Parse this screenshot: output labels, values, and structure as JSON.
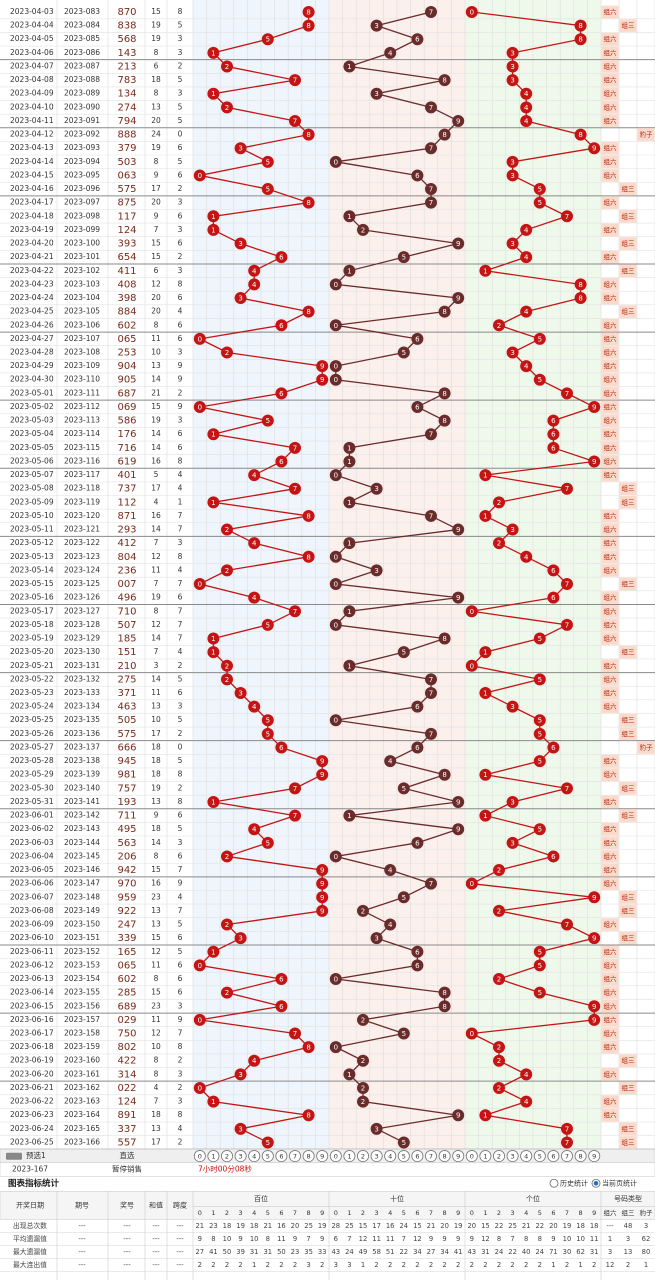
{
  "rows": [
    [
      "2023-04-03",
      "2023-083",
      "870",
      15,
      8,
      [
        8,
        7,
        0
      ],
      "组六"
    ],
    [
      "2023-04-04",
      "2023-084",
      "838",
      19,
      5,
      [
        8,
        3,
        8
      ],
      "组三"
    ],
    [
      "2023-04-05",
      "2023-085",
      "568",
      19,
      3,
      [
        5,
        6,
        8
      ],
      "组六"
    ],
    [
      "2023-04-06",
      "2023-086",
      "143",
      8,
      3,
      [
        1,
        4,
        3
      ],
      "组六"
    ],
    [
      "2023-04-07",
      "2023-087",
      "213",
      6,
      2,
      [
        2,
        1,
        3
      ],
      "组六"
    ],
    [
      "2023-04-08",
      "2023-088",
      "783",
      18,
      5,
      [
        7,
        8,
        3
      ],
      "组六"
    ],
    [
      "2023-04-09",
      "2023-089",
      "134",
      8,
      3,
      [
        1,
        3,
        4
      ],
      "组六"
    ],
    [
      "2023-04-10",
      "2023-090",
      "274",
      13,
      5,
      [
        2,
        7,
        4
      ],
      "组六"
    ],
    [
      "2023-04-11",
      "2023-091",
      "794",
      20,
      5,
      [
        7,
        9,
        4
      ],
      "组六"
    ],
    [
      "2023-04-12",
      "2023-092",
      "888",
      24,
      0,
      [
        8,
        8,
        8
      ],
      "豹子"
    ],
    [
      "2023-04-13",
      "2023-093",
      "379",
      19,
      6,
      [
        3,
        7,
        9
      ],
      "组六"
    ],
    [
      "2023-04-14",
      "2023-094",
      "503",
      8,
      5,
      [
        5,
        0,
        3
      ],
      "组六"
    ],
    [
      "2023-04-15",
      "2023-095",
      "063",
      9,
      6,
      [
        0,
        6,
        3
      ],
      "组六"
    ],
    [
      "2023-04-16",
      "2023-096",
      "575",
      17,
      2,
      [
        5,
        7,
        5
      ],
      "组三"
    ],
    [
      "2023-04-17",
      "2023-097",
      "875",
      20,
      3,
      [
        8,
        7,
        5
      ],
      "组六"
    ],
    [
      "2023-04-18",
      "2023-098",
      "117",
      9,
      6,
      [
        1,
        1,
        7
      ],
      "组三"
    ],
    [
      "2023-04-19",
      "2023-099",
      "124",
      7,
      3,
      [
        1,
        2,
        4
      ],
      "组六"
    ],
    [
      "2023-04-20",
      "2023-100",
      "393",
      15,
      6,
      [
        3,
        9,
        3
      ],
      "组三"
    ],
    [
      "2023-04-21",
      "2023-101",
      "654",
      15,
      2,
      [
        6,
        5,
        4
      ],
      "组六"
    ],
    [
      "2023-04-22",
      "2023-102",
      "411",
      6,
      3,
      [
        4,
        1,
        1
      ],
      "组三"
    ],
    [
      "2023-04-23",
      "2023-103",
      "408",
      12,
      8,
      [
        4,
        0,
        8
      ],
      "组六"
    ],
    [
      "2023-04-24",
      "2023-104",
      "398",
      20,
      6,
      [
        3,
        9,
        8
      ],
      "组六"
    ],
    [
      "2023-04-25",
      "2023-105",
      "884",
      20,
      4,
      [
        8,
        8,
        4
      ],
      "组三"
    ],
    [
      "2023-04-26",
      "2023-106",
      "602",
      8,
      6,
      [
        6,
        0,
        2
      ],
      "组六"
    ],
    [
      "2023-04-27",
      "2023-107",
      "065",
      11,
      6,
      [
        0,
        6,
        5
      ],
      "组六"
    ],
    [
      "2023-04-28",
      "2023-108",
      "253",
      10,
      3,
      [
        2,
        5,
        3
      ],
      "组六"
    ],
    [
      "2023-04-29",
      "2023-109",
      "904",
      13,
      9,
      [
        9,
        0,
        4
      ],
      "组六"
    ],
    [
      "2023-04-30",
      "2023-110",
      "905",
      14,
      9,
      [
        9,
        0,
        5
      ],
      "组六"
    ],
    [
      "2023-05-01",
      "2023-111",
      "687",
      21,
      2,
      [
        6,
        8,
        7
      ],
      "组六"
    ],
    [
      "2023-05-02",
      "2023-112",
      "069",
      15,
      9,
      [
        0,
        6,
        9
      ],
      "组六"
    ],
    [
      "2023-05-03",
      "2023-113",
      "586",
      19,
      3,
      [
        5,
        8,
        6
      ],
      "组六"
    ],
    [
      "2023-05-04",
      "2023-114",
      "176",
      14,
      6,
      [
        1,
        7,
        6
      ],
      "组六"
    ],
    [
      "2023-05-05",
      "2023-115",
      "716",
      14,
      6,
      [
        7,
        1,
        6
      ],
      "组六"
    ],
    [
      "2023-05-06",
      "2023-116",
      "619",
      16,
      8,
      [
        6,
        1,
        9
      ],
      "组六"
    ],
    [
      "2023-05-07",
      "2023-117",
      "401",
      5,
      4,
      [
        4,
        0,
        1
      ],
      "组六"
    ],
    [
      "2023-05-08",
      "2023-118",
      "737",
      17,
      4,
      [
        7,
        3,
        7
      ],
      "组三"
    ],
    [
      "2023-05-09",
      "2023-119",
      "112",
      4,
      1,
      [
        1,
        1,
        2
      ],
      "组三"
    ],
    [
      "2023-05-10",
      "2023-120",
      "871",
      16,
      7,
      [
        8,
        7,
        1
      ],
      "组六"
    ],
    [
      "2023-05-11",
      "2023-121",
      "293",
      14,
      7,
      [
        2,
        9,
        3
      ],
      "组六"
    ],
    [
      "2023-05-12",
      "2023-122",
      "412",
      7,
      3,
      [
        4,
        1,
        2
      ],
      "组六"
    ],
    [
      "2023-05-13",
      "2023-123",
      "804",
      12,
      8,
      [
        8,
        0,
        4
      ],
      "组六"
    ],
    [
      "2023-05-14",
      "2023-124",
      "236",
      11,
      4,
      [
        2,
        3,
        6
      ],
      "组六"
    ],
    [
      "2023-05-15",
      "2023-125",
      "007",
      7,
      7,
      [
        0,
        0,
        7
      ],
      "组三"
    ],
    [
      "2023-05-16",
      "2023-126",
      "496",
      19,
      6,
      [
        4,
        9,
        6
      ],
      "组六"
    ],
    [
      "2023-05-17",
      "2023-127",
      "710",
      8,
      7,
      [
        7,
        1,
        0
      ],
      "组六"
    ],
    [
      "2023-05-18",
      "2023-128",
      "507",
      12,
      7,
      [
        5,
        0,
        7
      ],
      "组六"
    ],
    [
      "2023-05-19",
      "2023-129",
      "185",
      14,
      7,
      [
        1,
        8,
        5
      ],
      "组六"
    ],
    [
      "2023-05-20",
      "2023-130",
      "151",
      7,
      4,
      [
        1,
        5,
        1
      ],
      "组三"
    ],
    [
      "2023-05-21",
      "2023-131",
      "210",
      3,
      2,
      [
        2,
        1,
        0
      ],
      "组六"
    ],
    [
      "2023-05-22",
      "2023-132",
      "275",
      14,
      5,
      [
        2,
        7,
        5
      ],
      "组六"
    ],
    [
      "2023-05-23",
      "2023-133",
      "371",
      11,
      6,
      [
        3,
        7,
        1
      ],
      "组六"
    ],
    [
      "2023-05-24",
      "2023-134",
      "463",
      13,
      3,
      [
        4,
        6,
        3
      ],
      "组六"
    ],
    [
      "2023-05-25",
      "2023-135",
      "505",
      10,
      5,
      [
        5,
        0,
        5
      ],
      "组三"
    ],
    [
      "2023-05-26",
      "2023-136",
      "575",
      17,
      2,
      [
        5,
        7,
        5
      ],
      "组三"
    ],
    [
      "2023-05-27",
      "2023-137",
      "666",
      18,
      0,
      [
        6,
        6,
        6
      ],
      "豹子"
    ],
    [
      "2023-05-28",
      "2023-138",
      "945",
      18,
      5,
      [
        9,
        4,
        5
      ],
      "组六"
    ],
    [
      "2023-05-29",
      "2023-139",
      "981",
      18,
      8,
      [
        9,
        8,
        1
      ],
      "组六"
    ],
    [
      "2023-05-30",
      "2023-140",
      "757",
      19,
      2,
      [
        7,
        5,
        7
      ],
      "组三"
    ],
    [
      "2023-05-31",
      "2023-141",
      "193",
      13,
      8,
      [
        1,
        9,
        3
      ],
      "组六"
    ],
    [
      "2023-06-01",
      "2023-142",
      "711",
      9,
      6,
      [
        7,
        1,
        1
      ],
      "组三"
    ],
    [
      "2023-06-02",
      "2023-143",
      "495",
      18,
      5,
      [
        4,
        9,
        5
      ],
      "组六"
    ],
    [
      "2023-06-03",
      "2023-144",
      "563",
      14,
      3,
      [
        5,
        6,
        3
      ],
      "组六"
    ],
    [
      "2023-06-04",
      "2023-145",
      "206",
      8,
      6,
      [
        2,
        0,
        6
      ],
      "组六"
    ],
    [
      "2023-06-05",
      "2023-146",
      "942",
      15,
      7,
      [
        9,
        4,
        2
      ],
      "组六"
    ],
    [
      "2023-06-06",
      "2023-147",
      "970",
      16,
      9,
      [
        9,
        7,
        0
      ],
      "组六"
    ],
    [
      "2023-06-07",
      "2023-148",
      "959",
      23,
      4,
      [
        9,
        5,
        9
      ],
      "组三"
    ],
    [
      "2023-06-08",
      "2023-149",
      "922",
      13,
      7,
      [
        9,
        2,
        2
      ],
      "组三"
    ],
    [
      "2023-06-09",
      "2023-150",
      "247",
      13,
      5,
      [
        2,
        4,
        7
      ],
      "组六"
    ],
    [
      "2023-06-10",
      "2023-151",
      "339",
      15,
      6,
      [
        3,
        3,
        9
      ],
      "组三"
    ],
    [
      "2023-06-11",
      "2023-152",
      "165",
      12,
      5,
      [
        1,
        6,
        5
      ],
      "组六"
    ],
    [
      "2023-06-12",
      "2023-153",
      "065",
      11,
      6,
      [
        0,
        6,
        5
      ],
      "组六"
    ],
    [
      "2023-06-13",
      "2023-154",
      "602",
      8,
      6,
      [
        6,
        0,
        2
      ],
      "组六"
    ],
    [
      "2023-06-14",
      "2023-155",
      "285",
      15,
      6,
      [
        2,
        8,
        5
      ],
      "组六"
    ],
    [
      "2023-06-15",
      "2023-156",
      "689",
      23,
      3,
      [
        6,
        8,
        9
      ],
      "组六"
    ],
    [
      "2023-06-16",
      "2023-157",
      "029",
      11,
      9,
      [
        0,
        2,
        9
      ],
      "组六"
    ],
    [
      "2023-06-17",
      "2023-158",
      "750",
      12,
      7,
      [
        7,
        5,
        0
      ],
      "组六"
    ],
    [
      "2023-06-18",
      "2023-159",
      "802",
      10,
      8,
      [
        8,
        0,
        2
      ],
      "组六"
    ],
    [
      "2023-06-19",
      "2023-160",
      "422",
      8,
      2,
      [
        4,
        2,
        2
      ],
      "组三"
    ],
    [
      "2023-06-20",
      "2023-161",
      "314",
      8,
      3,
      [
        3,
        1,
        4
      ],
      "组六"
    ],
    [
      "2023-06-21",
      "2023-162",
      "022",
      4,
      2,
      [
        0,
        2,
        2
      ],
      "组三"
    ],
    [
      "2023-06-22",
      "2023-163",
      "124",
      7,
      3,
      [
        1,
        2,
        4
      ],
      "组六"
    ],
    [
      "2023-06-23",
      "2023-164",
      "891",
      18,
      8,
      [
        8,
        9,
        1
      ],
      "组六"
    ],
    [
      "2023-06-24",
      "2023-165",
      "337",
      13,
      4,
      [
        3,
        3,
        7
      ],
      "组三"
    ],
    [
      "2023-06-25",
      "2023-166",
      "557",
      17,
      2,
      [
        5,
        5,
        7
      ],
      "组三"
    ]
  ],
  "preselect": {
    "label": "预选1",
    "mode": "直选",
    "balls": [
      0,
      1,
      2,
      3,
      4,
      5,
      6,
      7,
      8,
      9
    ]
  },
  "next": {
    "issue": "2023-167",
    "status": "暂停销售",
    "countdown": "7小时00分08秒"
  },
  "stats": {
    "title": "图表指标统计",
    "options": [
      "历史统计",
      "当前页统计"
    ],
    "headers": [
      "开奖日期",
      "期号",
      "奖号",
      "和值",
      "跨度"
    ],
    "groups": [
      "百位",
      "十位",
      "个位",
      "号码类型"
    ],
    "digits": [
      0,
      1,
      2,
      3,
      4,
      5,
      6,
      7,
      8,
      9
    ],
    "types": [
      "组六",
      "组三",
      "豹子"
    ],
    "rows": [
      [
        "出现总次数",
        "---",
        "---",
        "---",
        "---",
        21,
        23,
        18,
        19,
        18,
        21,
        16,
        20,
        25,
        19,
        28,
        25,
        15,
        17,
        16,
        24,
        15,
        21,
        20,
        19,
        20,
        15,
        22,
        25,
        21,
        22,
        20,
        19,
        18,
        18,
        "---",
        48,
        3
      ],
      [
        "平均遗漏值",
        "---",
        "---",
        "---",
        "---",
        9,
        8,
        10,
        9,
        10,
        8,
        11,
        9,
        7,
        9,
        6,
        7,
        12,
        11,
        11,
        7,
        12,
        9,
        9,
        9,
        9,
        12,
        8,
        7,
        8,
        8,
        9,
        10,
        10,
        11,
        1,
        3,
        62
      ],
      [
        "最大遗漏值",
        "---",
        "---",
        "---",
        "---",
        27,
        41,
        50,
        39,
        31,
        31,
        50,
        23,
        35,
        33,
        43,
        24,
        49,
        58,
        51,
        22,
        34,
        27,
        34,
        41,
        43,
        31,
        24,
        22,
        40,
        24,
        71,
        30,
        62,
        31,
        3,
        13,
        80
      ],
      [
        "最大连出值",
        "---",
        "---",
        "---",
        "---",
        2,
        2,
        2,
        2,
        1,
        2,
        2,
        2,
        3,
        2,
        3,
        3,
        1,
        2,
        2,
        2,
        2,
        2,
        2,
        2,
        2,
        2,
        2,
        2,
        2,
        2,
        1,
        2,
        1,
        2,
        12,
        2,
        1
      ]
    ]
  }
}
